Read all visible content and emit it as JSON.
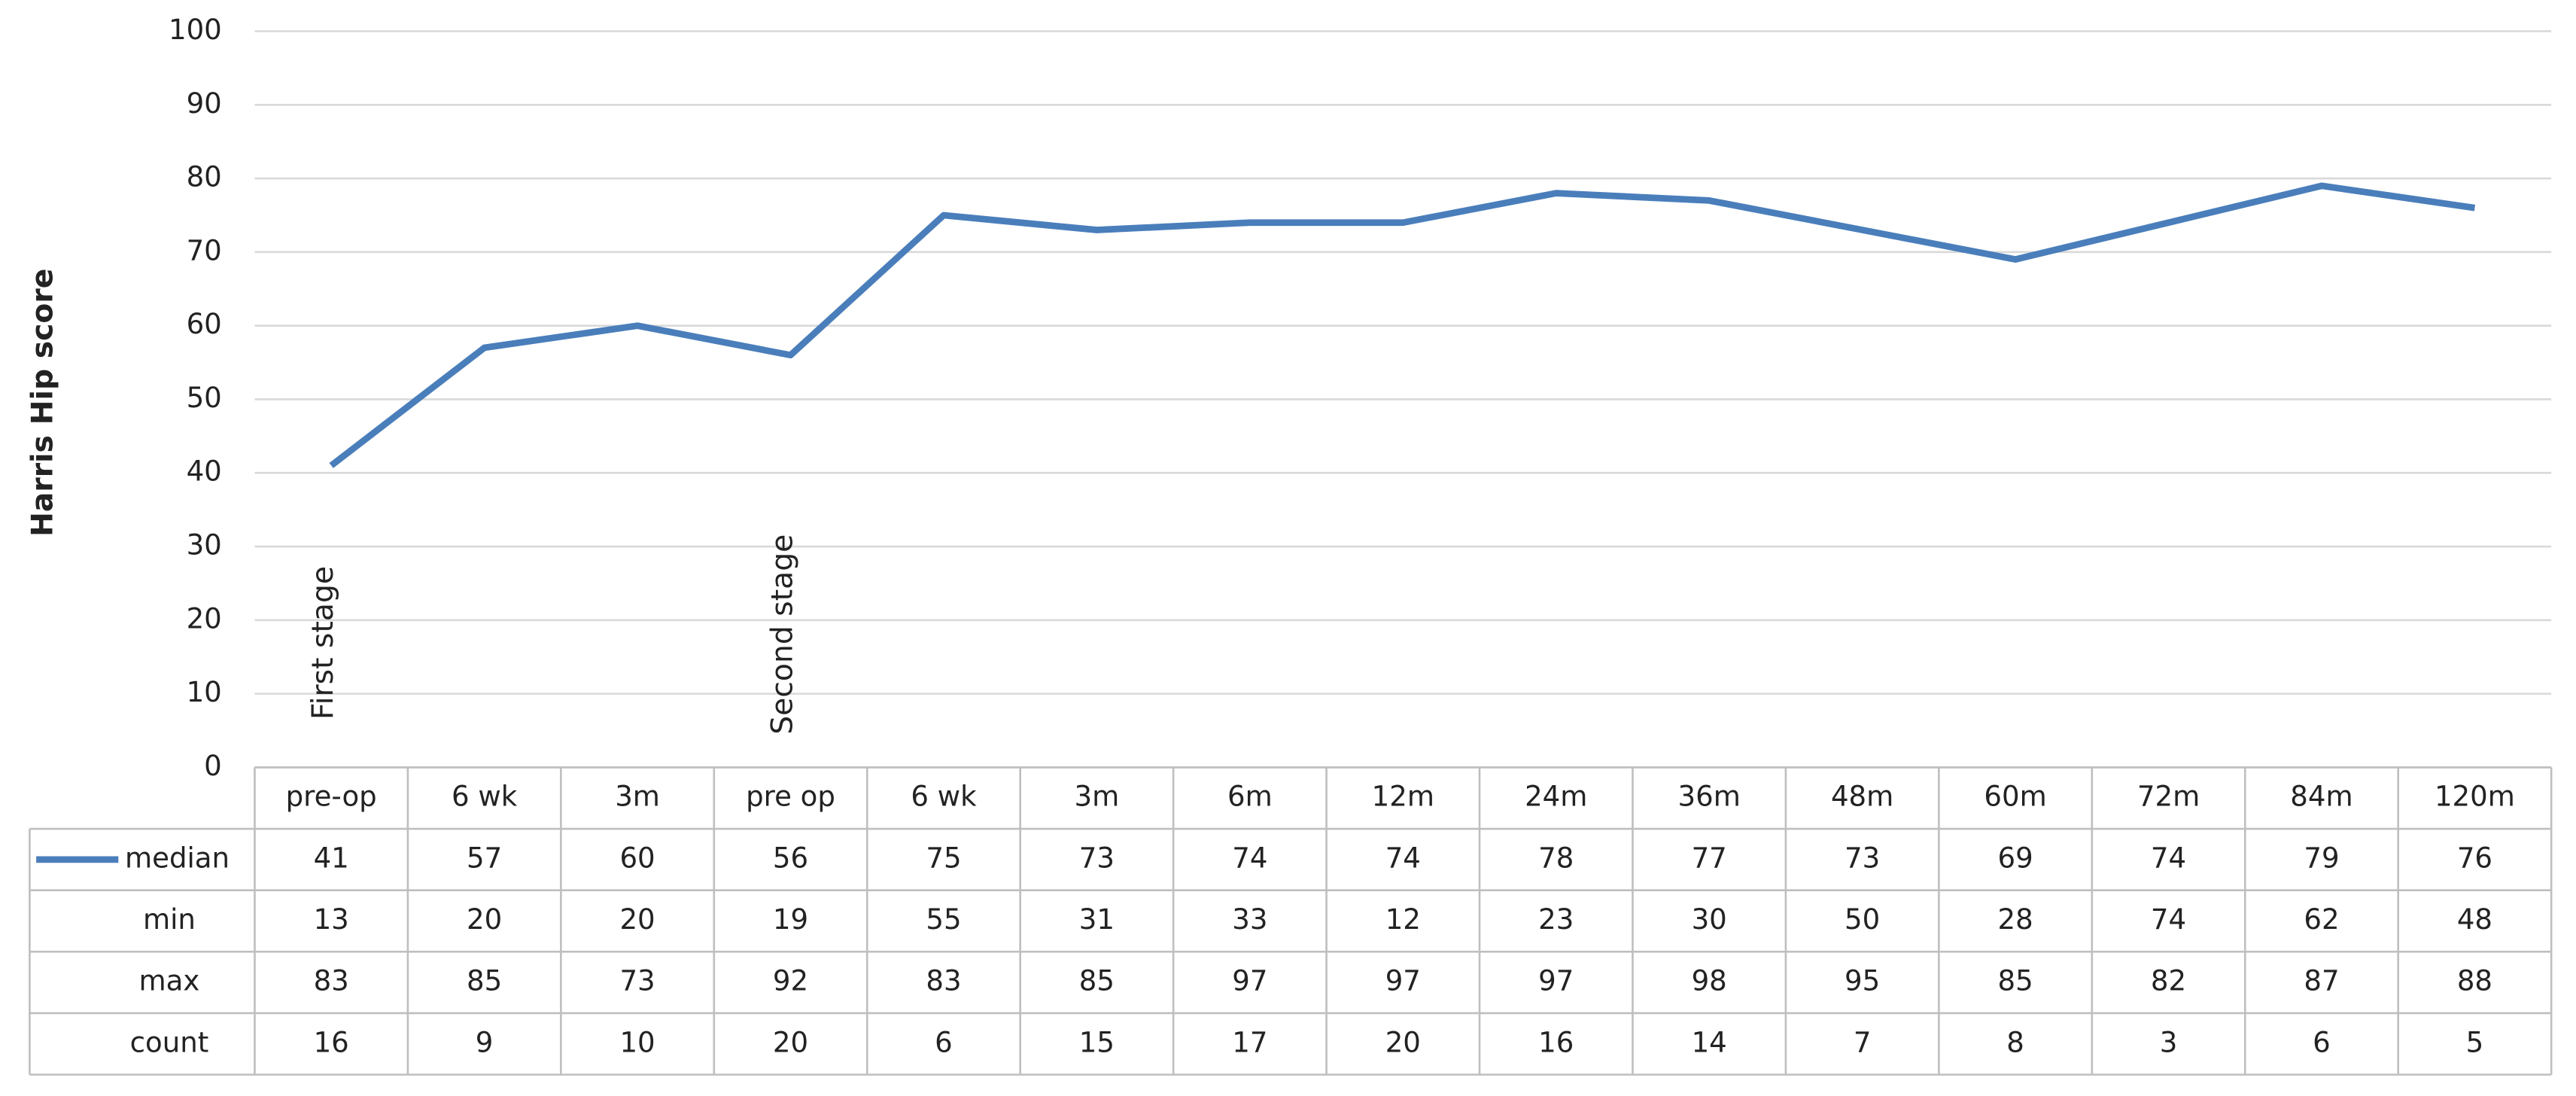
{
  "chart_data": {
    "type": "line",
    "y_label": "Harris Hip score",
    "categories": [
      "pre-op",
      "6 wk",
      "3m",
      "pre op",
      "6 wk",
      "3m",
      "6m",
      "12m",
      "24m",
      "36m",
      "48m",
      "60m",
      "72m",
      "84m",
      "120m"
    ],
    "series": [
      {
        "name": "median",
        "color": "#4a7ebb",
        "values": [
          41,
          57,
          60,
          56,
          75,
          73,
          74,
          74,
          78,
          77,
          73,
          69,
          74,
          79,
          76
        ]
      }
    ],
    "table_rows": [
      {
        "name": "min",
        "values": [
          13,
          20,
          20,
          19,
          55,
          31,
          33,
          12,
          23,
          30,
          50,
          28,
          74,
          62,
          48
        ]
      },
      {
        "name": "max",
        "values": [
          83,
          85,
          73,
          92,
          83,
          85,
          97,
          97,
          97,
          98,
          95,
          85,
          82,
          87,
          88
        ]
      },
      {
        "name": "count",
        "values": [
          16,
          9,
          10,
          20,
          6,
          15,
          17,
          20,
          16,
          14,
          7,
          8,
          3,
          6,
          5
        ]
      }
    ],
    "annotations": [
      "First stage",
      "Second stage"
    ],
    "ylim": [
      0,
      100
    ],
    "yticks": [
      0,
      10,
      20,
      30,
      40,
      50,
      60,
      70,
      80,
      90,
      100
    ],
    "grid": true
  }
}
